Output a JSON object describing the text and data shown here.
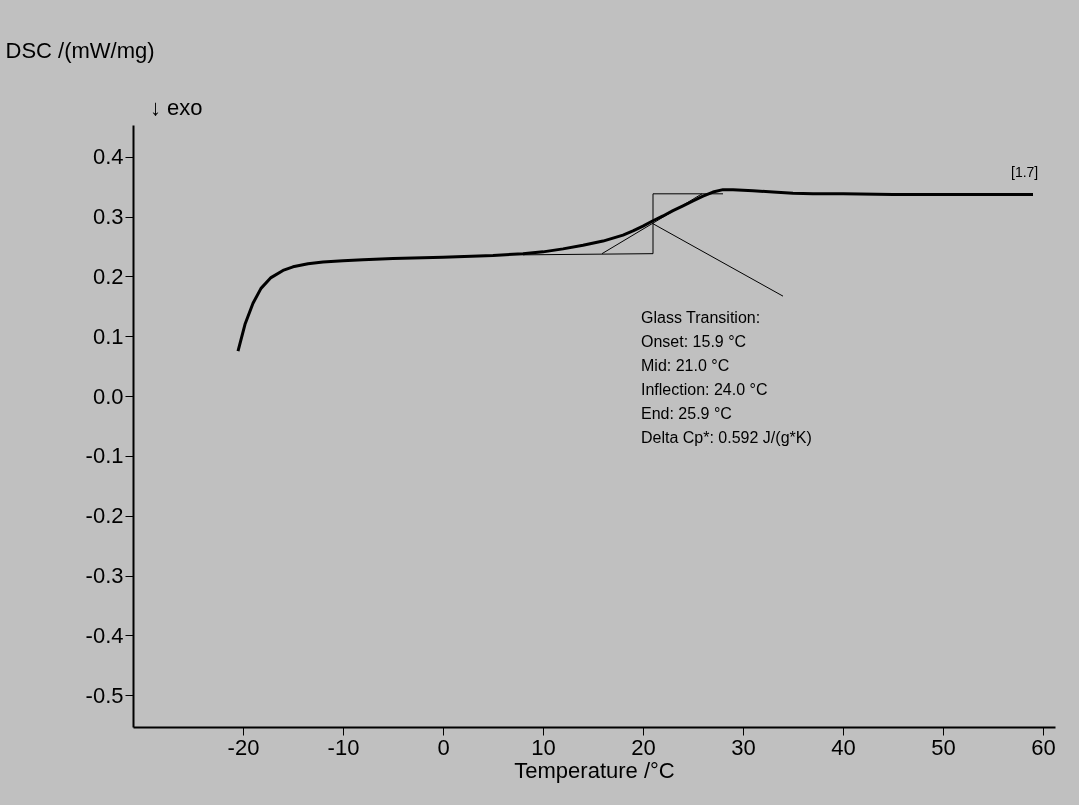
{
  "chart_data": {
    "type": "line",
    "xlabel": "Temperature /°C",
    "ylabel": "DSC /(mW/mg)",
    "xlim": [
      -31,
      61.2
    ],
    "ylim": [
      -0.553,
      0.453
    ],
    "xticks": [
      -20,
      -10,
      0,
      10,
      20,
      30,
      40,
      50,
      60
    ],
    "yticks": [
      -0.5,
      -0.4,
      -0.3,
      -0.2,
      -0.1,
      {
        "value": 0,
        "label": "0.0"
      },
      0.1,
      0.2,
      0.3,
      0.4
    ],
    "grid": false,
    "marker": "none",
    "line_style": "solid",
    "series": [
      {
        "color": "#000000",
        "x": [
          -20.5,
          -19.8,
          -19,
          -18.2,
          -17.2,
          -16,
          -15,
          -13.5,
          -12,
          -10,
          -8,
          -5,
          0,
          5,
          8,
          10,
          12,
          14,
          16,
          18,
          19,
          20,
          21,
          22,
          23,
          24,
          25,
          26,
          27,
          28,
          29,
          31,
          33,
          35,
          37,
          40,
          45,
          50,
          55,
          59
        ],
        "values": [
          0.075,
          0.12,
          0.155,
          0.18,
          0.198,
          0.21,
          0.216,
          0.221,
          0.224,
          0.226,
          0.228,
          0.23,
          0.232,
          0.235,
          0.238,
          0.241,
          0.246,
          0.252,
          0.259,
          0.269,
          0.276,
          0.284,
          0.293,
          0.301,
          0.31,
          0.318,
          0.326,
          0.334,
          0.341,
          0.345,
          0.345,
          0.343,
          0.341,
          0.339,
          0.338,
          0.338,
          0.337,
          0.337,
          0.337,
          0.337
        ]
      },
      {
        "color": "#000000",
        "x": [
          8,
          21
        ],
        "values": [
          0.236,
          0.238
        ]
      },
      {
        "color": "#000000",
        "x": [
          21,
          28
        ],
        "values": [
          0.338,
          0.338
        ]
      },
      {
        "color": "#000000",
        "x": [
          21,
          21
        ],
        "values": [
          0.238,
          0.338
        ]
      },
      {
        "color": "#000000",
        "x": [
          15.9,
          25.9
        ],
        "values": [
          0.238,
          0.338
        ]
      },
      {
        "color": "#000000",
        "x": [
          21,
          34
        ],
        "values": [
          0.288,
          0.167
        ]
      }
    ],
    "annotations": [
      "↓  exo",
      "[1.7]",
      "Glass Transition:",
      "Onset:          15.9 °C",
      "Mid:              21.0 °C",
      "Inflection:    24.0 °C",
      "End:              25.9 °C",
      "Delta Cp*:    0.592 J/(g*K)"
    ]
  }
}
